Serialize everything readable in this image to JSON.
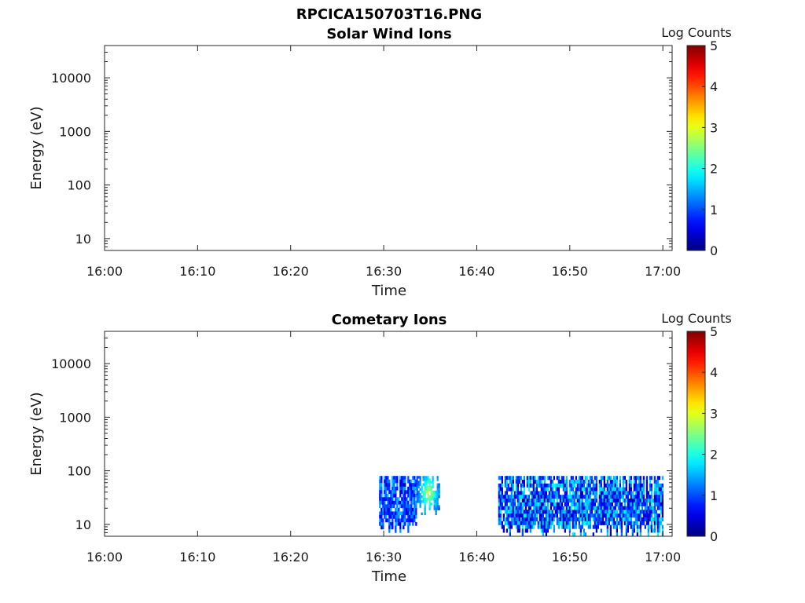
{
  "figure_title": "RPCICA150703T16.PNG",
  "chart_data": [
    {
      "type": "heatmap",
      "title": "Solar Wind Ions",
      "xlabel": "Time",
      "ylabel": "Energy (eV)",
      "x_ticks": [
        "16:00",
        "16:10",
        "16:20",
        "16:30",
        "16:40",
        "16:50",
        "17:00"
      ],
      "x_range_minutes": [
        0,
        61
      ],
      "y_scale": "log",
      "y_ticks": [
        10,
        100,
        1000,
        10000
      ],
      "y_tick_labels": [
        "10",
        "100",
        "1000",
        "10000"
      ],
      "y_range": [
        6,
        40000
      ],
      "colorbar": {
        "label": "Log Counts",
        "ticks": [
          "0",
          "1",
          "2",
          "3",
          "4",
          "5"
        ],
        "range": [
          0,
          5
        ],
        "colormap": "jet"
      },
      "data_blocks": []
    },
    {
      "type": "heatmap",
      "title": "Cometary Ions",
      "xlabel": "Time",
      "ylabel": "Energy (eV)",
      "x_ticks": [
        "16:00",
        "16:10",
        "16:20",
        "16:30",
        "16:40",
        "16:50",
        "17:00"
      ],
      "x_range_minutes": [
        0,
        61
      ],
      "y_scale": "log",
      "y_ticks": [
        10,
        100,
        1000,
        10000
      ],
      "y_tick_labels": [
        "10",
        "100",
        "1000",
        "10000"
      ],
      "y_range": [
        6,
        40000
      ],
      "colorbar": {
        "label": "Log Counts",
        "ticks": [
          "0",
          "1",
          "2",
          "3",
          "4",
          "5"
        ],
        "range": [
          0,
          5
        ],
        "colormap": "jet"
      },
      "data_blocks": [
        {
          "t_start_min": 29.5,
          "t_end_min": 33.5,
          "e_min_eV": 7,
          "e_max_eV": 80,
          "log_counts_min": 0.3,
          "log_counts_max": 1.6
        },
        {
          "t_start_min": 33.5,
          "t_end_min": 36.0,
          "e_min_eV": 15,
          "e_max_eV": 80,
          "log_counts_min": 0.8,
          "log_counts_max": 2.7
        },
        {
          "t_start_min": 42.3,
          "t_end_min": 60.0,
          "e_min_eV": 6,
          "e_max_eV": 80,
          "log_counts_min": 0.2,
          "log_counts_max": 1.9
        }
      ]
    }
  ]
}
